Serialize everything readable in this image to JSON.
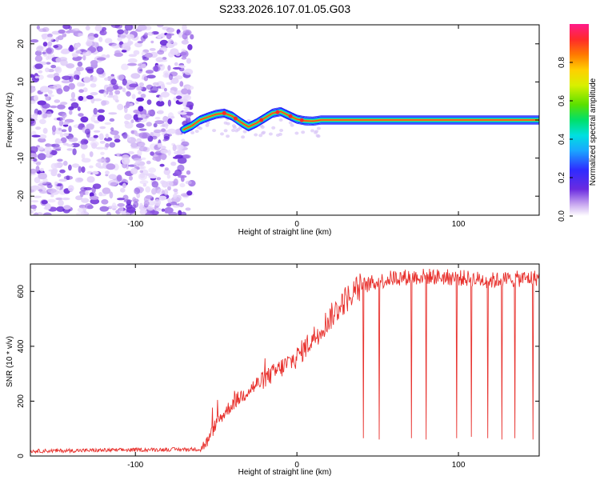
{
  "title": "S233.2026.107.01.05.G03",
  "chart_data": [
    {
      "type": "heatmap",
      "name": "spectrogram",
      "xlabel": "Height of straight line (km)",
      "ylabel": "Frequency (Hz)",
      "xlim": [
        -165,
        150
      ],
      "ylim": [
        -25,
        25
      ],
      "xticks": [
        -100,
        0,
        100
      ],
      "yticks": [
        -20,
        -10,
        0,
        10,
        20
      ],
      "noise_region_x": [
        -165,
        -65
      ],
      "track": {
        "x": [
          -70,
          -65,
          -60,
          -55,
          -50,
          -45,
          -40,
          -35,
          -30,
          -25,
          -20,
          -15,
          -10,
          -5,
          0,
          5,
          10,
          15,
          20,
          50,
          100,
          150
        ],
        "freq": [
          -2.5,
          -1.5,
          0.0,
          0.8,
          1.5,
          1.8,
          1.0,
          -0.5,
          -1.8,
          -0.8,
          0.5,
          1.8,
          2.2,
          1.2,
          0.2,
          -0.2,
          -0.3,
          0.0,
          0.0,
          0.0,
          0.0,
          0.0
        ]
      },
      "colorbar": {
        "label": "Normalized spectral amplitude",
        "range": [
          0,
          1
        ],
        "ticks": [
          "0.0",
          "0.2",
          "0.4",
          "0.6",
          "0.8"
        ]
      }
    },
    {
      "type": "line",
      "name": "snr",
      "xlabel": "Height of straight line (km)",
      "ylabel": "SNR (10 * v/v)",
      "xlim": [
        -165,
        150
      ],
      "ylim": [
        0,
        700
      ],
      "xticks": [
        -100,
        0,
        100
      ],
      "yticks": [
        0,
        200,
        400,
        600
      ],
      "color": "#e8322e",
      "trend": {
        "x": [
          -165,
          -60,
          -55,
          -50,
          -40,
          -30,
          -20,
          -10,
          0,
          10,
          20,
          30,
          40,
          60,
          80,
          100,
          120,
          150
        ],
        "y": [
          18,
          25,
          55,
          120,
          190,
          240,
          280,
          320,
          360,
          430,
          500,
          570,
          620,
          650,
          655,
          650,
          640,
          650
        ]
      },
      "dropouts": [
        {
          "x": 41,
          "y": 65
        },
        {
          "x": 51,
          "y": 60
        },
        {
          "x": 71,
          "y": 65
        },
        {
          "x": 80,
          "y": 60
        },
        {
          "x": 99,
          "y": 65
        },
        {
          "x": 108,
          "y": 70
        },
        {
          "x": 118,
          "y": 65
        },
        {
          "x": 127,
          "y": 60
        },
        {
          "x": 135,
          "y": 65
        },
        {
          "x": 146,
          "y": 60
        }
      ]
    }
  ]
}
